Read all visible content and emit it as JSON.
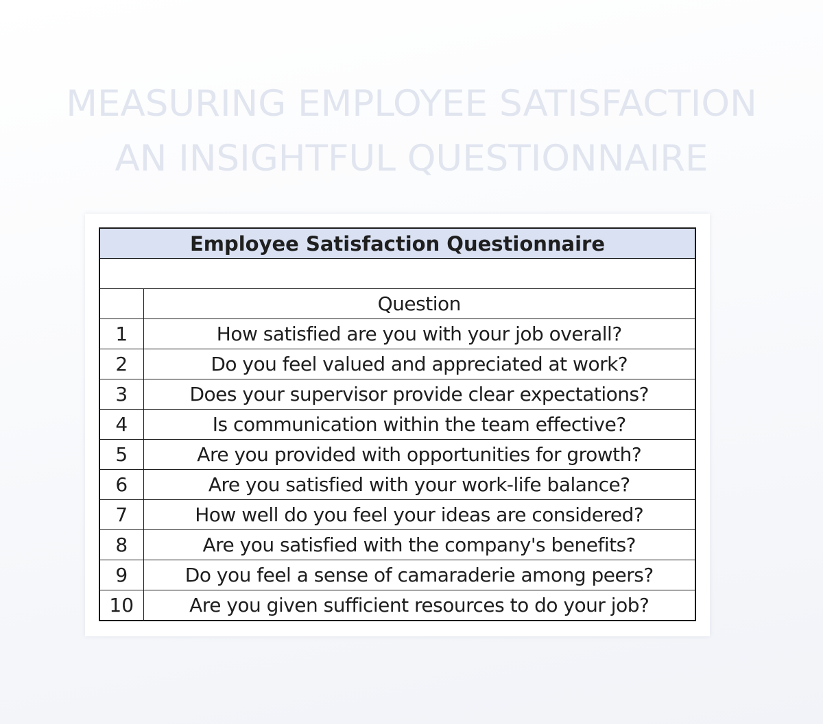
{
  "heading": {
    "line1": "MEASURING EMPLOYEE SATISFACTION",
    "line2": "AN INSIGHTFUL QUESTIONNAIRE"
  },
  "table": {
    "title": "Employee Satisfaction Questionnaire",
    "header": {
      "number": "",
      "question": "Question"
    },
    "rows": [
      {
        "number": "1",
        "question": "How satisfied are you with your job overall?"
      },
      {
        "number": "2",
        "question": "Do you feel valued and appreciated at work?"
      },
      {
        "number": "3",
        "question": "Does your supervisor provide clear expectations?"
      },
      {
        "number": "4",
        "question": "Is communication within the team effective?"
      },
      {
        "number": "5",
        "question": "Are you provided with opportunities for growth?"
      },
      {
        "number": "6",
        "question": "Are you satisfied with your work-life balance?"
      },
      {
        "number": "7",
        "question": "How well do you feel your ideas are considered?"
      },
      {
        "number": "8",
        "question": "Are you satisfied with the company's benefits?"
      },
      {
        "number": "9",
        "question": "Do you feel a sense of camaraderie among peers?"
      },
      {
        "number": "10",
        "question": "Are you given sufficient resources to do your job?"
      }
    ]
  },
  "colors": {
    "title_fill": "#d9e1f2",
    "heading_text": "#e1e5ef",
    "border": "#1c1c1c"
  }
}
